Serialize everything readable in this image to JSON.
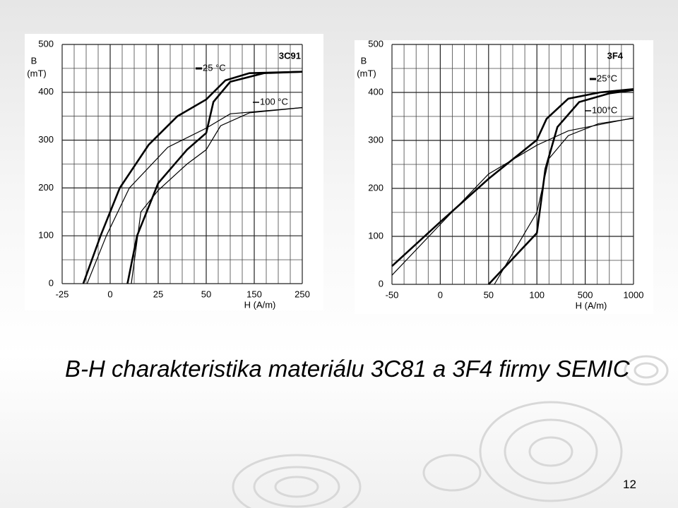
{
  "slide": {
    "title": "B-H charakteristika materiálu 3C81 a 3F4 firmy SEMIC",
    "page_number": "12"
  },
  "chart_data": [
    {
      "type": "line",
      "title": "3C91",
      "y_label": "B",
      "y_unit": "(mT)",
      "x_label": "H  (A/m)",
      "xlim": [
        -25,
        250
      ],
      "xticks": [
        -25,
        0,
        25,
        50,
        150,
        250
      ],
      "ylim": [
        0,
        500
      ],
      "yticks": [
        0,
        100,
        200,
        300,
        400,
        500
      ],
      "grid": true,
      "series": [
        {
          "name": "25 °C",
          "color": "#000000",
          "x": [
            -14,
            -5,
            5,
            20,
            35,
            50,
            90,
            140,
            250
          ],
          "values": [
            0,
            100,
            200,
            290,
            350,
            385,
            425,
            440,
            443
          ]
        },
        {
          "name": "25 °C",
          "color": "#000000",
          "x": [
            9,
            14,
            25,
            40,
            50,
            65,
            100,
            170,
            250
          ],
          "values": [
            0,
            100,
            210,
            280,
            315,
            380,
            422,
            440,
            443
          ]
        },
        {
          "name": "100 °C",
          "color": "#000000",
          "x": [
            -12,
            -2,
            10,
            30,
            50,
            100,
            250
          ],
          "values": [
            0,
            100,
            200,
            285,
            325,
            355,
            368
          ]
        },
        {
          "name": "100 °C",
          "color": "#000000",
          "x": [
            11,
            16,
            25,
            40,
            50,
            80,
            140,
            250
          ],
          "values": [
            0,
            150,
            195,
            250,
            280,
            330,
            357,
            368
          ]
        }
      ]
    },
    {
      "type": "line",
      "title": "3F4",
      "y_label": "B",
      "y_unit": "(mT)",
      "x_label": "H  (A/m)",
      "xlim": [
        -50,
        1000
      ],
      "xticks": [
        -50,
        0,
        50,
        100,
        500,
        1000
      ],
      "ylim": [
        0,
        500
      ],
      "yticks": [
        0,
        100,
        200,
        300,
        400,
        500
      ],
      "grid": true,
      "series": [
        {
          "name": "25°C",
          "color": "#000000",
          "x": [
            -50,
            0,
            50,
            100,
            180,
            360,
            650,
            1000
          ],
          "values": [
            38,
            130,
            220,
            301,
            345,
            387,
            400,
            407
          ]
        },
        {
          "name": "25°C",
          "color": "#000000",
          "x": [
            50,
            100,
            170,
            270,
            450,
            750,
            1000
          ],
          "values": [
            0,
            107,
            240,
            328,
            380,
            398,
            405
          ]
        },
        {
          "name": "100°C",
          "color": "#000000",
          "x": [
            -50,
            0,
            50,
            100,
            360,
            1000
          ],
          "values": [
            19,
            125,
            230,
            290,
            320,
            347
          ]
        },
        {
          "name": "100°C",
          "color": "#000000",
          "x": [
            56,
            100,
            200,
            360,
            640,
            1000
          ],
          "values": [
            0,
            150,
            262,
            310,
            335,
            346
          ]
        }
      ]
    }
  ]
}
